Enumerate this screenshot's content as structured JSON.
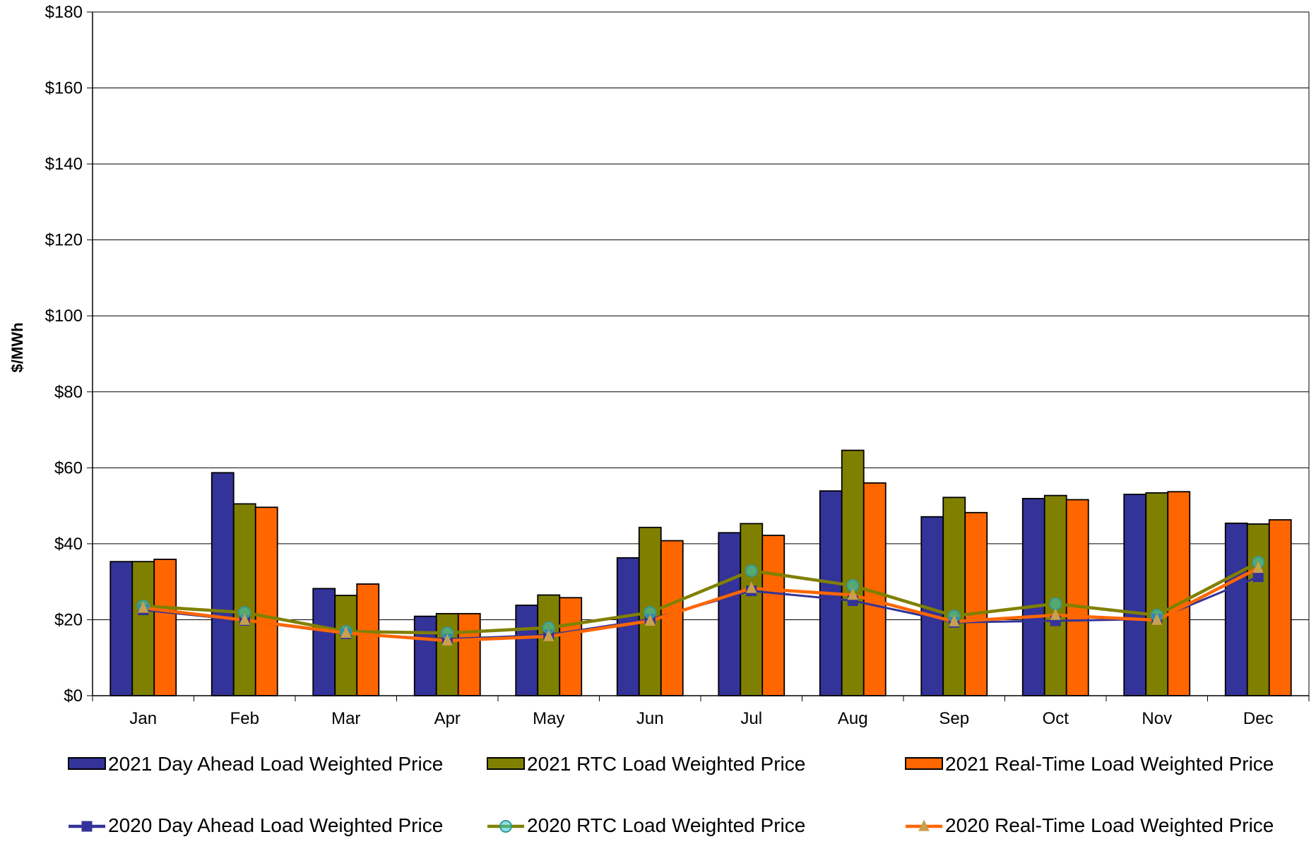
{
  "chart_data": {
    "type": "bar",
    "title": "",
    "xlabel": "",
    "ylabel": "$/MWh",
    "ylim": [
      0,
      180
    ],
    "ytick_step": 20,
    "ytick_prefix": "$",
    "grid": true,
    "legend_placement": "bottom",
    "categories": [
      "Jan",
      "Feb",
      "Mar",
      "Apr",
      "May",
      "Jun",
      "Jul",
      "Aug",
      "Sep",
      "Oct",
      "Nov",
      "Dec"
    ],
    "series": [
      {
        "name": "2021 Day Ahead Load Weighted Price",
        "kind": "bar",
        "color": "#333399",
        "values": [
          35.3,
          58.7,
          28.2,
          20.9,
          23.8,
          36.3,
          42.9,
          53.9,
          47.1,
          51.9,
          53.0,
          45.4
        ]
      },
      {
        "name": "2021 RTC Load Weighted Price",
        "kind": "bar",
        "color": "#808000",
        "values": [
          35.3,
          50.5,
          26.4,
          21.6,
          26.5,
          44.3,
          45.3,
          64.6,
          52.2,
          52.7,
          53.4,
          45.2
        ]
      },
      {
        "name": "2021 Real-Time Load Weighted Price",
        "kind": "bar",
        "color": "#FF6600",
        "values": [
          35.9,
          49.6,
          29.4,
          21.6,
          25.8,
          40.8,
          42.2,
          56.0,
          48.2,
          51.6,
          53.7,
          46.3
        ]
      },
      {
        "name": "2020 Day Ahead Load Weighted Price",
        "kind": "line",
        "marker": "square",
        "color": "#333399",
        "values": [
          22.6,
          19.8,
          16.3,
          14.9,
          16.0,
          20.1,
          27.6,
          25.0,
          19.3,
          19.7,
          20.2,
          31.3
        ]
      },
      {
        "name": "2020 RTC Load Weighted Price",
        "kind": "line",
        "marker": "circle",
        "color": "#808000",
        "values": [
          23.6,
          21.9,
          16.9,
          16.5,
          17.9,
          21.9,
          32.9,
          29.0,
          21.0,
          24.2,
          21.2,
          35.1
        ]
      },
      {
        "name": "2020 Real-Time Load Weighted Price",
        "kind": "line",
        "marker": "triangle",
        "color": "#FF6600",
        "values": [
          23.1,
          19.9,
          16.5,
          14.5,
          15.6,
          19.7,
          28.3,
          26.5,
          19.5,
          21.2,
          19.9,
          33.6
        ]
      }
    ]
  }
}
